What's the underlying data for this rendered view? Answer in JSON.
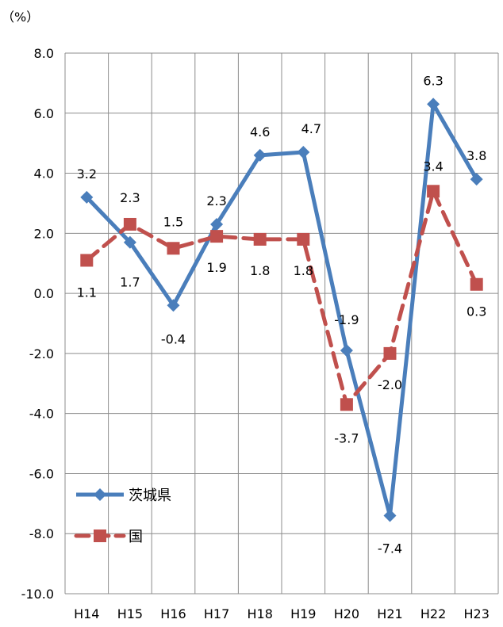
{
  "chart_data": {
    "type": "line",
    "title": "",
    "unit_label": "（%）",
    "categories": [
      "H14",
      "H15",
      "H16",
      "H17",
      "H18",
      "H19",
      "H20",
      "H21",
      "H22",
      "H23"
    ],
    "ylim": [
      -10,
      8
    ],
    "yticks": [
      "8.0",
      "6.0",
      "4.0",
      "2.0",
      "0.0",
      "-2.0",
      "-4.0",
      "-6.0",
      "-8.0",
      "-10.0"
    ],
    "grid": true,
    "legend_position": "bottom-left",
    "series": [
      {
        "name": "茨城県",
        "color": "#4a7ebb",
        "marker": "diamond",
        "line_style": "solid",
        "values": [
          3.2,
          1.7,
          -0.4,
          2.3,
          4.6,
          4.7,
          -1.9,
          -7.4,
          6.3,
          3.8
        ],
        "labels": [
          "3.2",
          "1.7",
          "-0.4",
          "2.3",
          "4.6",
          "4.7",
          "-1.9",
          "-7.4",
          "6.3",
          "3.8"
        ]
      },
      {
        "name": "国",
        "color": "#c0504d",
        "marker": "square",
        "line_style": "dashed",
        "values": [
          1.1,
          2.3,
          1.5,
          1.9,
          1.8,
          1.8,
          -3.7,
          -2.0,
          3.4,
          0.3
        ],
        "labels": [
          "1.1",
          "2.3",
          "1.5",
          "1.9",
          "1.8",
          "1.8",
          "-3.7",
          "-2.0",
          "3.4",
          "0.3"
        ]
      }
    ]
  }
}
